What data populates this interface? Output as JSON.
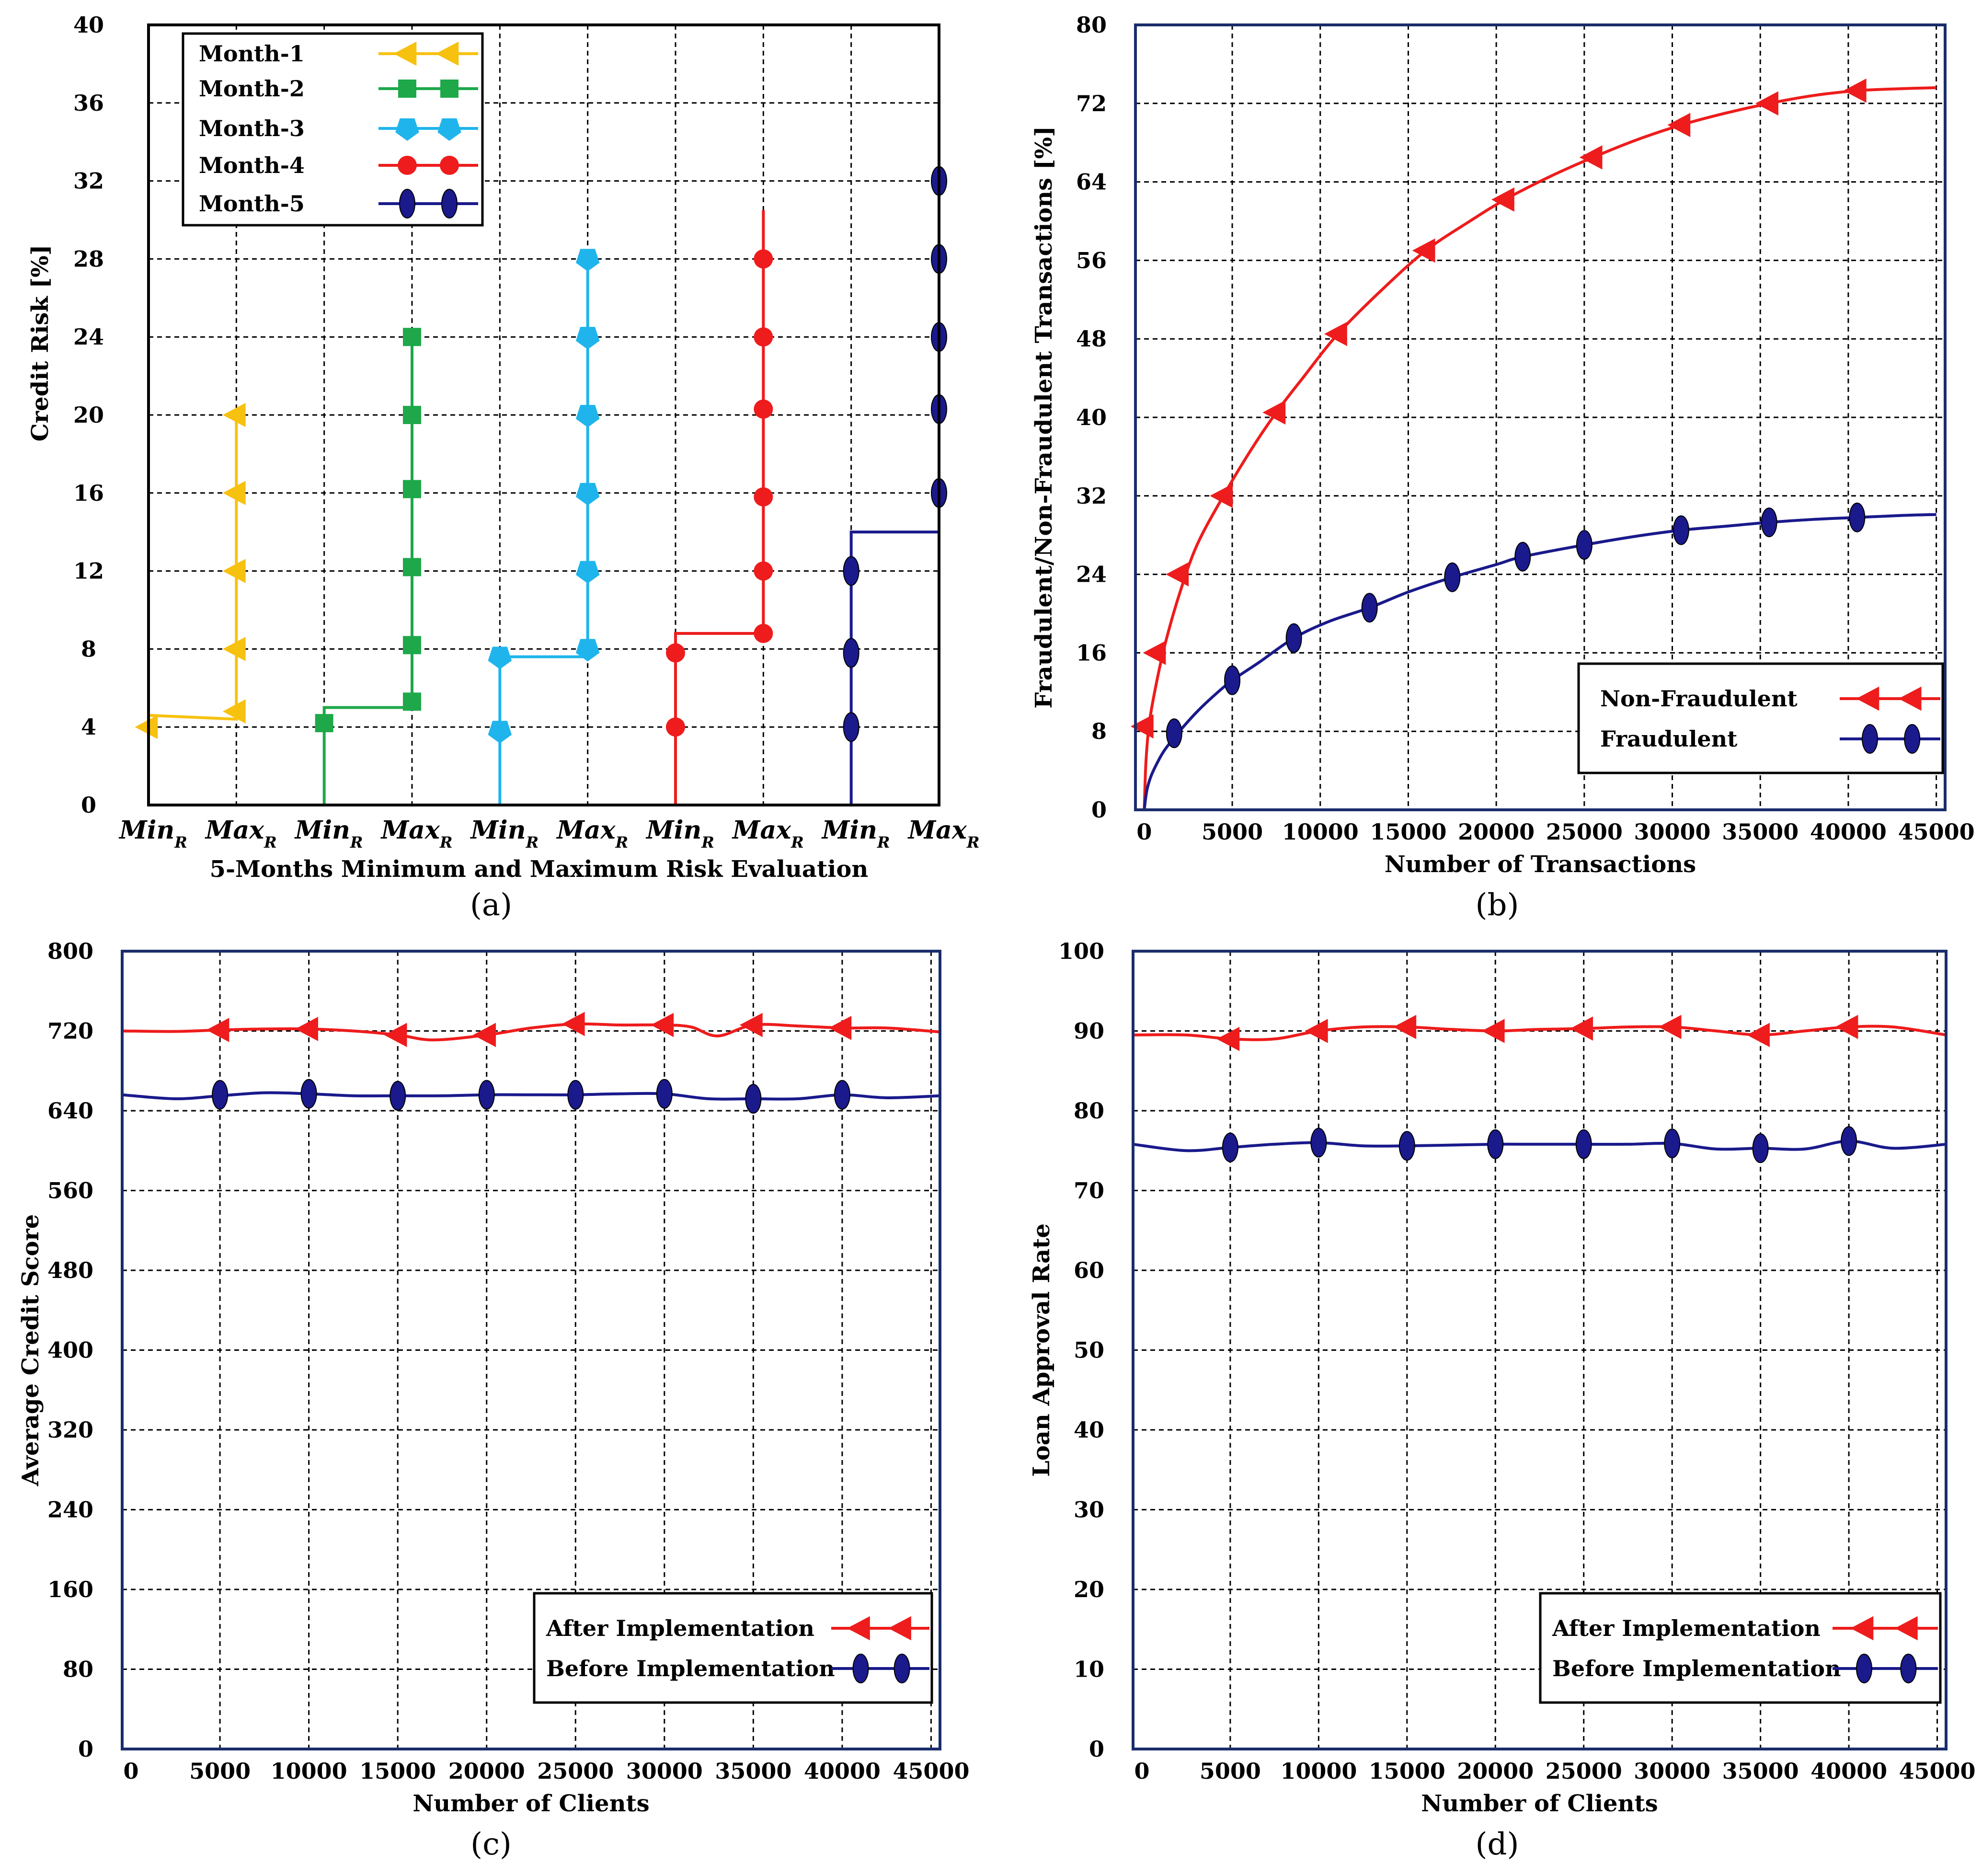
{
  "chart_data": [
    {
      "id": "a",
      "panel_label": "(a)",
      "type": "line",
      "title": "",
      "xlabel": "5-Months Minimum and Maximum Risk Evaluation",
      "ylabel": "Credit Risk [%]",
      "ylim": [
        0,
        40
      ],
      "yticks": [
        0,
        4,
        8,
        12,
        16,
        20,
        24,
        28,
        32,
        36,
        40
      ],
      "xtick_labels": [
        {
          "main": "Min",
          "sub": "R"
        },
        {
          "main": "Max",
          "sub": "R"
        },
        {
          "main": "Min",
          "sub": "R"
        },
        {
          "main": "Max",
          "sub": "R"
        },
        {
          "main": "Min",
          "sub": "R"
        },
        {
          "main": "Max",
          "sub": "R"
        },
        {
          "main": "Min",
          "sub": "R"
        },
        {
          "main": "Max",
          "sub": "R"
        },
        {
          "main": "Min",
          "sub": "R"
        },
        {
          "main": "Max",
          "sub": "R"
        }
      ],
      "legend_position": "top-left",
      "series": [
        {
          "name": "Month-1",
          "color": "#f7c10f",
          "marker": "triangle-left",
          "min_idx": 0,
          "max_idx": 1,
          "min_level": 4.6,
          "max_level": 4.6,
          "min_points": [
            4
          ],
          "max_points": [
            4.8,
            8,
            12,
            16,
            20
          ]
        },
        {
          "name": "Month-2",
          "color": "#1ea84a",
          "marker": "square",
          "min_idx": 2,
          "max_idx": 3,
          "min_level": 5,
          "max_level": 5,
          "min_points": [
            4.2
          ],
          "max_points": [
            5.3,
            8.2,
            12.2,
            16.2,
            20,
            24
          ]
        },
        {
          "name": "Month-3",
          "color": "#1fb5ec",
          "marker": "pentagon-down",
          "min_idx": 4,
          "max_idx": 5,
          "min_level": 7.6,
          "max_level": 7.6,
          "min_points": [
            3.8,
            7.6
          ],
          "max_points": [
            8,
            12,
            16,
            20,
            24,
            28
          ]
        },
        {
          "name": "Month-4",
          "color": "#ee1c1c",
          "marker": "circle",
          "min_idx": 6,
          "max_idx": 7,
          "min_level": 8.8,
          "max_level": 8.8,
          "min_points": [
            4,
            7.8
          ],
          "max_points": [
            8.8,
            12,
            15.8,
            20.3,
            24,
            28
          ],
          "max_top": 30.5
        },
        {
          "name": "Month-5",
          "color": "#1a1a8c",
          "marker": "ellipse",
          "min_idx": 8,
          "max_idx": 9,
          "min_level": 14,
          "max_level": 14,
          "min_points": [
            4,
            7.8,
            12
          ],
          "max_points": [
            16,
            20.3,
            24,
            28,
            32
          ]
        }
      ]
    },
    {
      "id": "b",
      "panel_label": "(b)",
      "type": "line",
      "title": "",
      "xlabel": "Number of Transactions",
      "ylabel": "Fraudulent/Non-Fraudulent Transactions [%]",
      "xlim": [
        -500,
        45500
      ],
      "ylim": [
        0,
        80
      ],
      "xticks": [
        0,
        5000,
        10000,
        15000,
        20000,
        25000,
        30000,
        35000,
        40000,
        45000
      ],
      "yticks": [
        0,
        8,
        16,
        24,
        32,
        40,
        48,
        56,
        64,
        72,
        80
      ],
      "legend_position": "bottom-right",
      "series": [
        {
          "name": "Non-Fraudulent",
          "color": "#ee1c1c",
          "marker": "triangle-left",
          "curve_x": [
            0,
            100,
            300,
            700,
            1200,
            2000,
            3000,
            4500,
            6000,
            7500,
            9000,
            11000,
            13500,
            16000,
            18500,
            20500,
            23000,
            25500,
            28000,
            30500,
            33000,
            35500,
            38000,
            40500,
            43000,
            45000
          ],
          "curve_y": [
            0,
            5,
            9,
            13,
            17,
            22,
            27,
            32,
            36.5,
            40.5,
            44,
            48.5,
            53,
            57,
            60,
            62.2,
            64.5,
            66.5,
            68.3,
            69.8,
            71,
            72,
            72.8,
            73.3,
            73.5,
            73.6
          ],
          "markers_x": [
            0,
            700,
            2000,
            4500,
            7500,
            11000,
            16000,
            20500,
            25500,
            30500,
            35500,
            40500
          ],
          "markers_y": [
            8.5,
            16,
            24,
            32,
            40.5,
            48.5,
            57,
            62.2,
            66.5,
            69.8,
            72,
            73.3
          ]
        },
        {
          "name": "Fraudulent",
          "color": "#1a1a8c",
          "marker": "ellipse",
          "curve_x": [
            0,
            150,
            400,
            800,
            1200,
            2000,
            3000,
            4000,
            5000,
            6500,
            8500,
            10500,
            12800,
            15000,
            17500,
            20000,
            21500,
            25000,
            28000,
            30500,
            33000,
            35500,
            38000,
            40500,
            43000,
            45000
          ],
          "curve_y": [
            0,
            2,
            3.5,
            5,
            6.2,
            8,
            10,
            11.7,
            13.2,
            15,
            17.5,
            19.2,
            20.6,
            22.2,
            23.7,
            25,
            25.8,
            27,
            27.9,
            28.5,
            28.9,
            29.3,
            29.6,
            29.8,
            30,
            30.1
          ],
          "markers_x": [
            1700,
            5000,
            8500,
            12800,
            17500,
            21500,
            25000,
            30500,
            35500,
            40500
          ],
          "markers_y": [
            7.8,
            13.2,
            17.5,
            20.6,
            23.7,
            25.8,
            27,
            28.5,
            29.3,
            29.8
          ]
        }
      ]
    },
    {
      "id": "c",
      "panel_label": "(c)",
      "type": "line",
      "title": "",
      "xlabel": "Number of Clients",
      "ylabel": "Average Credit Score",
      "xlim": [
        -500,
        45500
      ],
      "ylim": [
        0,
        800
      ],
      "xticks": [
        0,
        5000,
        10000,
        15000,
        20000,
        25000,
        30000,
        35000,
        40000,
        45000
      ],
      "yticks": [
        0,
        80,
        160,
        240,
        320,
        400,
        480,
        560,
        640,
        720,
        800
      ],
      "legend_position": "bottom-right",
      "series": [
        {
          "name": "After Implementation",
          "color": "#ee1c1c",
          "marker": "triangle-left",
          "curve_x": [
            -500,
            2500,
            5000,
            7500,
            10000,
            12500,
            15000,
            17000,
            20000,
            22500,
            25000,
            27500,
            30000,
            31500,
            33000,
            35000,
            37500,
            40000,
            42500,
            45500
          ],
          "curve_y": [
            720,
            719.5,
            721,
            722,
            722,
            720,
            716,
            711,
            716,
            723,
            727,
            726,
            726,
            724,
            715,
            726,
            725,
            723,
            723,
            719
          ],
          "markers_x": [
            5000,
            10000,
            15000,
            20000,
            25000,
            30000,
            35000,
            40000
          ],
          "markers_y": [
            721,
            722,
            716,
            716,
            727,
            726,
            726,
            723
          ]
        },
        {
          "name": "Before Implementation",
          "color": "#1a1a8c",
          "marker": "ellipse",
          "curve_x": [
            -500,
            2500,
            5000,
            7500,
            10000,
            12500,
            15000,
            17500,
            20000,
            22500,
            25000,
            27500,
            30000,
            32500,
            35000,
            37500,
            40000,
            42500,
            45500
          ],
          "curve_y": [
            656,
            652,
            655,
            658,
            657,
            655,
            655,
            655,
            656,
            656,
            656,
            657,
            657,
            652,
            652,
            652,
            656,
            653,
            655
          ],
          "markers_x": [
            5000,
            10000,
            15000,
            20000,
            25000,
            30000,
            35000,
            40000
          ],
          "markers_y": [
            656,
            657,
            655,
            656,
            656,
            657,
            652,
            656
          ]
        }
      ]
    },
    {
      "id": "d",
      "panel_label": "(d)",
      "type": "line",
      "title": "",
      "xlabel": "Number of Clients",
      "ylabel": "Loan Approval Rate",
      "xlim": [
        -500,
        45500
      ],
      "ylim": [
        0,
        100
      ],
      "xticks": [
        0,
        5000,
        10000,
        15000,
        20000,
        25000,
        30000,
        35000,
        40000,
        45000
      ],
      "yticks": [
        0,
        10,
        20,
        30,
        40,
        50,
        60,
        70,
        80,
        90,
        100
      ],
      "legend_position": "bottom-right",
      "series": [
        {
          "name": "After Implementation",
          "color": "#ee1c1c",
          "marker": "triangle-left",
          "curve_x": [
            -500,
            2500,
            5000,
            7500,
            10000,
            12500,
            15000,
            17500,
            20000,
            22500,
            25000,
            27500,
            30000,
            32500,
            35000,
            37500,
            40000,
            42500,
            45500
          ],
          "curve_y": [
            89.5,
            89.5,
            89,
            89,
            90,
            90.5,
            90.5,
            90.2,
            90,
            90.2,
            90.3,
            90.5,
            90.5,
            90,
            89.5,
            90,
            90.5,
            90.5,
            89.5
          ],
          "markers_x": [
            5000,
            10000,
            15000,
            20000,
            25000,
            30000,
            35000,
            40000
          ],
          "markers_y": [
            89,
            90,
            90.5,
            90,
            90.3,
            90.5,
            89.5,
            90.5
          ]
        },
        {
          "name": "Before Implementation",
          "color": "#1a1a8c",
          "marker": "ellipse",
          "curve_x": [
            -500,
            2500,
            5000,
            7500,
            10000,
            12500,
            15000,
            17500,
            20000,
            22500,
            25000,
            27500,
            30000,
            32500,
            35000,
            37500,
            40000,
            42500,
            45500
          ],
          "curve_y": [
            75.8,
            75,
            75.4,
            75.8,
            76,
            75.6,
            75.6,
            75.7,
            75.8,
            75.8,
            75.8,
            75.8,
            75.9,
            75.2,
            75.3,
            75.2,
            76.2,
            75.3,
            75.8
          ],
          "markers_x": [
            5000,
            10000,
            15000,
            20000,
            25000,
            30000,
            35000,
            40000
          ],
          "markers_y": [
            75.4,
            76,
            75.6,
            75.8,
            75.8,
            75.9,
            75.3,
            76.2
          ]
        }
      ]
    }
  ]
}
